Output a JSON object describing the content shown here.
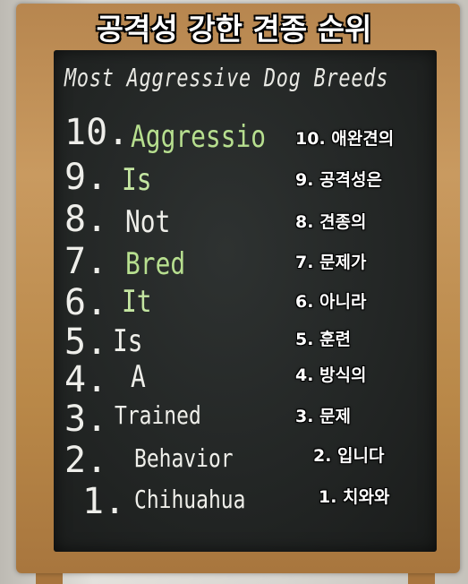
{
  "overlay_title": "공격성 강한 견종 순위",
  "chalk_title": "Most Aggressive Dog Breeds",
  "colors": {
    "green_chalk": "#b7df8f",
    "white_chalk": "#efefea"
  },
  "items": [
    {
      "num": "10.",
      "word": "Aggressio",
      "kr": "10. 애완견의",
      "color": "#b7df8f"
    },
    {
      "num": "9.",
      "word": "Is",
      "kr": "9. 공격성은",
      "color": "#c4e6a1"
    },
    {
      "num": "8.",
      "word": "Not",
      "kr": "8. 견종의",
      "color": "#efefea"
    },
    {
      "num": "7.",
      "word": "Bred",
      "kr": "7. 문제가",
      "color": "#b7df8f"
    },
    {
      "num": "6.",
      "word": "It",
      "kr": "6. 아니라",
      "color": "#c4e6a1"
    },
    {
      "num": "5.",
      "word": "Is",
      "kr": "5. 훈련",
      "color": "#efefea"
    },
    {
      "num": "4.",
      "word": "A",
      "kr": "4. 방식의",
      "color": "#efefea"
    },
    {
      "num": "3.",
      "word": "Trained",
      "kr": "3. 문제",
      "color": "#efefea"
    },
    {
      "num": "2.",
      "word": "Behavior",
      "kr": "2. 입니다",
      "color": "#efefea"
    },
    {
      "num": "1.",
      "word": "Chihuahua",
      "kr": "1. 치와와",
      "color": "#efefea"
    }
  ]
}
